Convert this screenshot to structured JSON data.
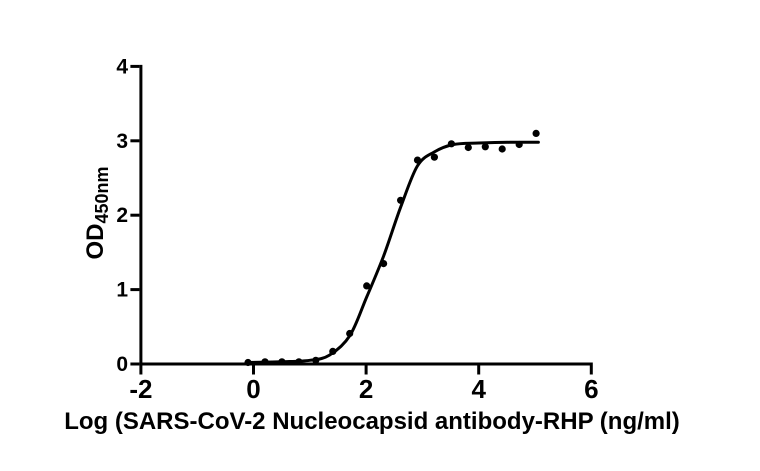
{
  "figure": {
    "background_color": "#ffffff",
    "foreground_color": "#000000"
  },
  "chart_data": {
    "type": "scatter",
    "title": "",
    "xlabel": "Log (SARS-CoV-2 Nucleocapsid antibody-RHP (ng/ml)",
    "ylabel": {
      "main": "OD",
      "subscript": "450nm"
    },
    "axes": {
      "x": {
        "min": -2,
        "max": 6,
        "ticks": [
          -2,
          0,
          2,
          4,
          6
        ]
      },
      "y": {
        "min": 0,
        "max": 4,
        "ticks": [
          0,
          1,
          2,
          3,
          4
        ]
      }
    },
    "grid": false,
    "legend": "none",
    "marker_color": "#000000",
    "line_color": "#000000",
    "series": [
      {
        "name": "SARS-CoV-2 Nucleocapsid antibody-RHP",
        "marker": "filled-circle",
        "points": [
          {
            "x": -0.097,
            "y": 0.02
          },
          {
            "x": 0.204,
            "y": 0.03
          },
          {
            "x": 0.505,
            "y": 0.03
          },
          {
            "x": 0.806,
            "y": 0.03
          },
          {
            "x": 1.107,
            "y": 0.05
          },
          {
            "x": 1.408,
            "y": 0.17
          },
          {
            "x": 1.709,
            "y": 0.41
          },
          {
            "x": 2.01,
            "y": 1.05
          },
          {
            "x": 2.311,
            "y": 1.35
          },
          {
            "x": 2.612,
            "y": 2.2
          },
          {
            "x": 2.913,
            "y": 2.74
          },
          {
            "x": 3.214,
            "y": 2.78
          },
          {
            "x": 3.515,
            "y": 2.96
          },
          {
            "x": 3.816,
            "y": 2.91
          },
          {
            "x": 4.117,
            "y": 2.92
          },
          {
            "x": 4.418,
            "y": 2.89
          },
          {
            "x": 4.719,
            "y": 2.95
          },
          {
            "x": 5.02,
            "y": 3.1
          }
        ]
      }
    ],
    "fit_curve": {
      "name": "sigmoidal-4PL-fit",
      "anchors": [
        [
          -0.1,
          0.02
        ],
        [
          0.5,
          0.03
        ],
        [
          1.0,
          0.05
        ],
        [
          1.35,
          0.12
        ],
        [
          1.71,
          0.38
        ],
        [
          2.01,
          0.9
        ],
        [
          2.31,
          1.45
        ],
        [
          2.61,
          2.1
        ],
        [
          2.91,
          2.66
        ],
        [
          3.21,
          2.85
        ],
        [
          3.55,
          2.95
        ],
        [
          4.0,
          2.97
        ],
        [
          4.55,
          2.98
        ],
        [
          5.06,
          2.98
        ]
      ]
    }
  }
}
